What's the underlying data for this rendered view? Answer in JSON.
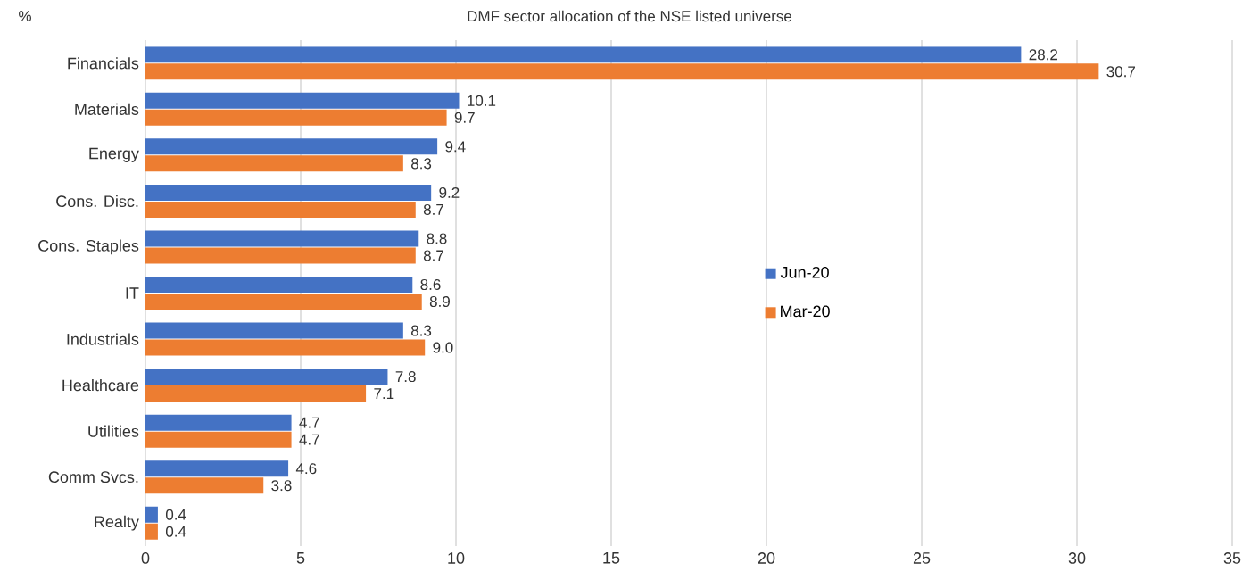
{
  "chart_data": {
    "type": "bar",
    "orientation": "horizontal",
    "title": "DMF sector allocation of the NSE listed universe",
    "annotations": [
      "%"
    ],
    "categories": [
      "Financials",
      "Materials",
      "Energy",
      "Cons. Disc.",
      "Cons. Staples",
      "IT",
      "Industrials",
      "Healthcare",
      "Utilities",
      "Comm Svcs.",
      "Realty"
    ],
    "series": [
      {
        "name": "Jun-20",
        "color": "#4472c4",
        "values": [
          28.2,
          10.1,
          9.4,
          9.2,
          8.8,
          8.6,
          8.3,
          7.8,
          4.7,
          4.6,
          0.4
        ],
        "value_labels": [
          "28.2",
          "10.1",
          "9.4",
          "9.2",
          "8.8",
          "8.6",
          "8.3",
          "7.8",
          "4.7",
          "4.6",
          "0.4"
        ]
      },
      {
        "name": "Mar-20",
        "color": "#ed7d31",
        "values": [
          30.7,
          9.7,
          8.3,
          8.7,
          8.7,
          8.9,
          9.0,
          7.1,
          4.7,
          3.8,
          0.4
        ],
        "value_labels": [
          "30.7",
          "9.7",
          "8.3",
          "8.7",
          "8.7",
          "8.9",
          "9.0",
          "7.1",
          "4.7",
          "3.8",
          "0.4"
        ]
      }
    ],
    "xlim": [
      0,
      35
    ],
    "xticks": [
      0,
      5,
      10,
      15,
      20,
      25,
      30,
      35
    ],
    "grid": "x",
    "legend": "right"
  }
}
